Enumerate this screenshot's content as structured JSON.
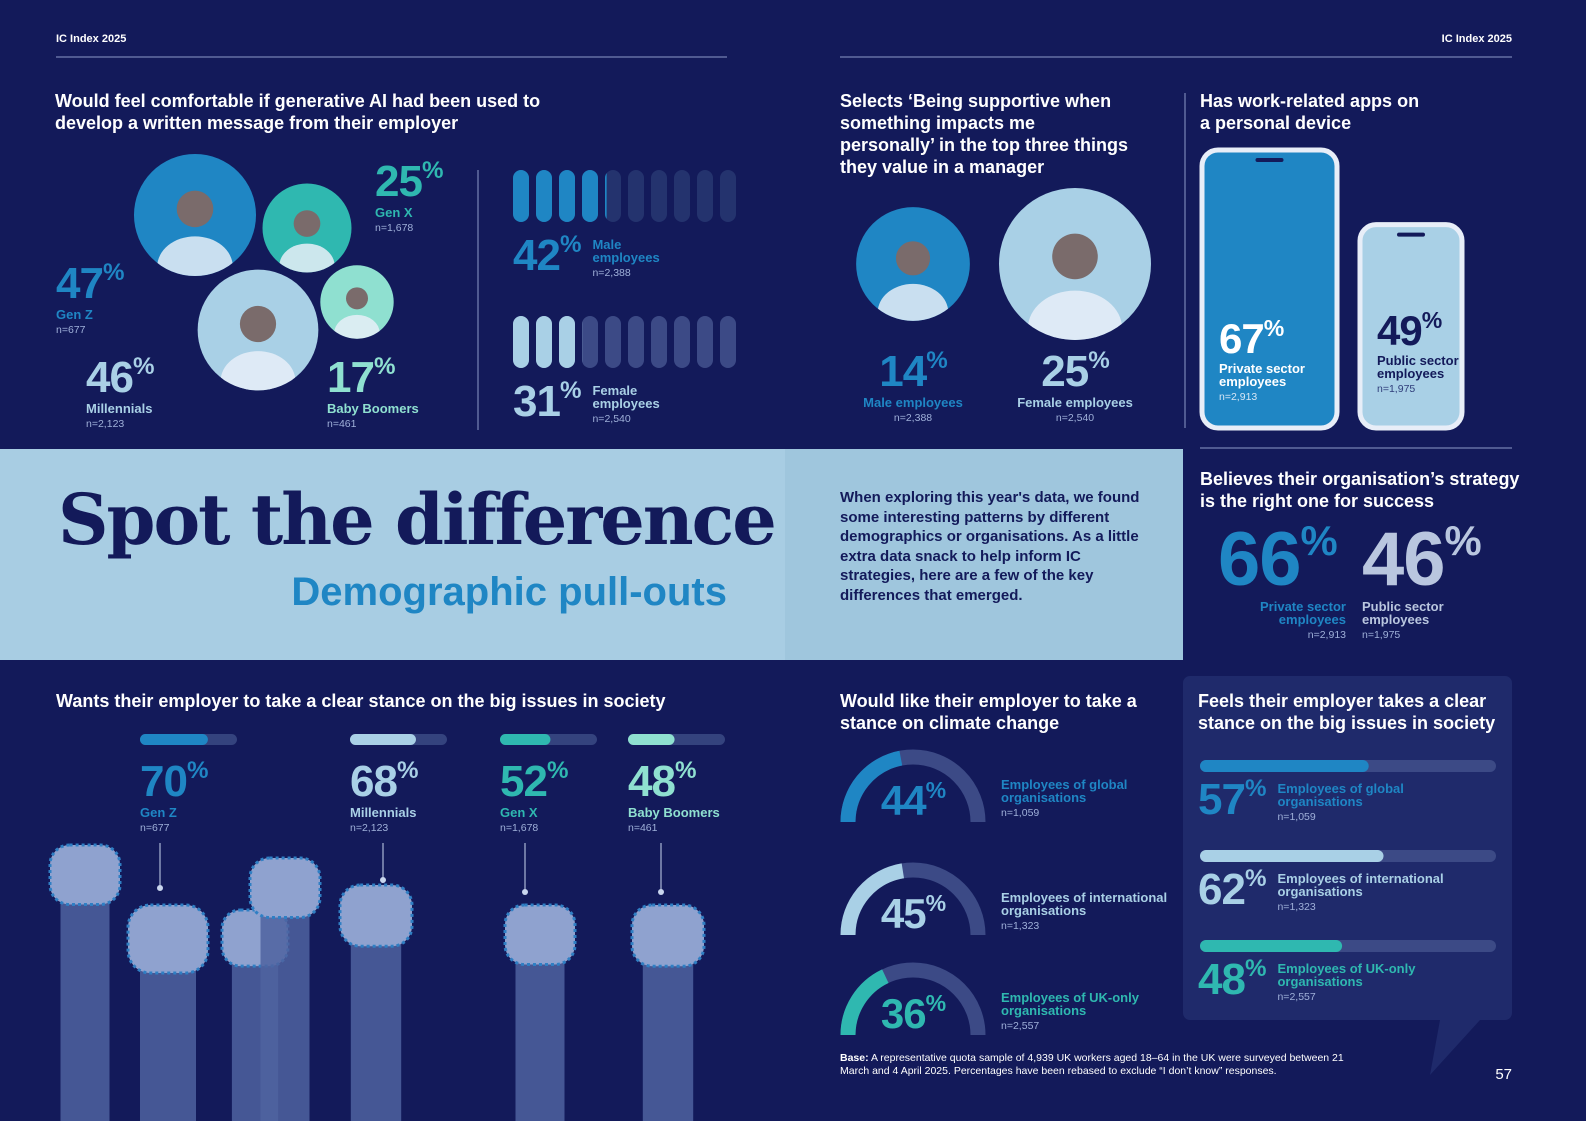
{
  "header": {
    "left": "IC Index 2025",
    "right": "IC Index 2025"
  },
  "ai_comfort": {
    "title": "Would feel comfortable if generative AI had been used to develop a written message from their employer",
    "generations": [
      {
        "label": "Gen Z",
        "value": 47,
        "unit": "%",
        "n": "n=677",
        "color": "#1f86c4"
      },
      {
        "label": "Gen X",
        "value": 25,
        "unit": "%",
        "n": "n=1,678",
        "color": "#2fb8b0"
      },
      {
        "label": "Millennials",
        "value": 46,
        "unit": "%",
        "n": "n=2,123",
        "color": "#a9d0e6"
      },
      {
        "label": "Baby Boomers",
        "value": 17,
        "unit": "%",
        "n": "n=461",
        "color": "#8fe0d0"
      }
    ],
    "gender": [
      {
        "label": "Male employees",
        "value": 42,
        "unit": "%",
        "n": "n=2,388",
        "color": "#1f86c4"
      },
      {
        "label": "Female employees",
        "value": 31,
        "unit": "%",
        "n": "n=2,540",
        "color": "#a9d0e6"
      }
    ]
  },
  "manager": {
    "title": "Selects ‘Being supportive when something impacts me personally’ in the top three things they value in a manager",
    "items": [
      {
        "label": "Male employees",
        "value": 14,
        "unit": "%",
        "n": "n=2,388",
        "color": "#1f86c4"
      },
      {
        "label": "Female employees",
        "value": 25,
        "unit": "%",
        "n": "n=2,540",
        "color": "#a9d0e6"
      }
    ]
  },
  "work_apps": {
    "title": "Has work-related apps on a personal device",
    "items": [
      {
        "label": "Private sector employees",
        "value": 67,
        "unit": "%",
        "n": "n=2,913",
        "color": "#1f86c4"
      },
      {
        "label": "Public sector employees",
        "value": 49,
        "unit": "%",
        "n": "n=1,975",
        "color": "#a9d0e6"
      }
    ]
  },
  "banner": {
    "title": "Spot the difference",
    "subtitle": "Demographic pull-outs",
    "intro": "When exploring this year's data, we found some interesting patterns by different demographics or organisations. As a little extra data snack to help inform IC strategies, here are a few of the key differences that emerged."
  },
  "strategy": {
    "title": "Believes their organisation’s strategy is the right one for success",
    "items": [
      {
        "label": "Private sector employees",
        "value": 66,
        "unit": "%",
        "n": "n=2,913",
        "color": "#1f86c4"
      },
      {
        "label": "Public sector employees",
        "value": 46,
        "unit": "%",
        "n": "n=1,975",
        "color": "#b9c6df"
      }
    ]
  },
  "clear_stance": {
    "title": "Wants their employer to take a clear stance on the big issues in society",
    "items": [
      {
        "label": "Gen Z",
        "value": 70,
        "unit": "%",
        "n": "n=677",
        "color": "#1f86c4"
      },
      {
        "label": "Millennials",
        "value": 68,
        "unit": "%",
        "n": "n=2,123",
        "color": "#a9d0e6"
      },
      {
        "label": "Gen X",
        "value": 52,
        "unit": "%",
        "n": "n=1,678",
        "color": "#2fb8b0"
      },
      {
        "label": "Baby Boomers",
        "value": 48,
        "unit": "%",
        "n": "n=461",
        "color": "#8fe0d0"
      }
    ]
  },
  "climate": {
    "title": "Would like their employer to take a stance on climate change",
    "items": [
      {
        "label": "Employees of global organisations",
        "value": 44,
        "unit": "%",
        "n": "n=1,059",
        "color": "#1f86c4"
      },
      {
        "label": "Employees of international organisations",
        "value": 45,
        "unit": "%",
        "n": "n=1,323",
        "color": "#a9d0e6"
      },
      {
        "label": "Employees of UK-only organisations",
        "value": 36,
        "unit": "%",
        "n": "n=2,557",
        "color": "#2fb8b0"
      }
    ]
  },
  "employer_stance": {
    "title": "Feels their employer takes a clear stance on the big issues in society",
    "items": [
      {
        "label": "Employees of global organisations",
        "value": 57,
        "unit": "%",
        "n": "n=1,059",
        "color": "#1f86c4"
      },
      {
        "label": "Employees of international organisations",
        "value": 62,
        "unit": "%",
        "n": "n=1,323",
        "color": "#a9d0e6"
      },
      {
        "label": "Employees of UK-only organisations",
        "value": 48,
        "unit": "%",
        "n": "n=2,557",
        "color": "#2fb8b0"
      }
    ]
  },
  "base_note": {
    "label": "Base:",
    "text": "A representative quota sample of 4,939 UK workers aged 18–64 in the UK were surveyed between 21 March and 4 April 2025. Percentages have been rebased to exclude “I don’t know” responses."
  },
  "page_number": 57
}
